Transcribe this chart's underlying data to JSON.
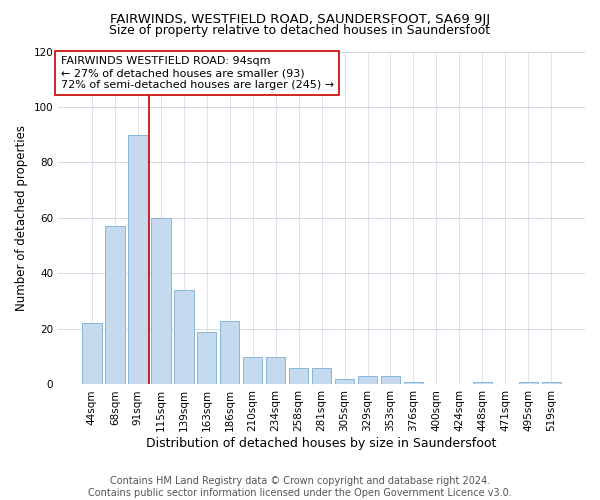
{
  "title": "FAIRWINDS, WESTFIELD ROAD, SAUNDERSFOOT, SA69 9JJ",
  "subtitle": "Size of property relative to detached houses in Saundersfoot",
  "xlabel": "Distribution of detached houses by size in Saundersfoot",
  "ylabel": "Number of detached properties",
  "categories": [
    "44sqm",
    "68sqm",
    "91sqm",
    "115sqm",
    "139sqm",
    "163sqm",
    "186sqm",
    "210sqm",
    "234sqm",
    "258sqm",
    "281sqm",
    "305sqm",
    "329sqm",
    "353sqm",
    "376sqm",
    "400sqm",
    "424sqm",
    "448sqm",
    "471sqm",
    "495sqm",
    "519sqm"
  ],
  "values": [
    22,
    57,
    90,
    60,
    34,
    19,
    23,
    10,
    10,
    6,
    6,
    2,
    3,
    3,
    1,
    0,
    0,
    1,
    0,
    1,
    1
  ],
  "bar_color": "#c5d9ef",
  "bar_edge_color": "#7aadd4",
  "annotation_line_color": "#cc0000",
  "annotation_box_edge_color": "#cc0000",
  "annotation_box_text_line1": "FAIRWINDS WESTFIELD ROAD: 94sqm",
  "annotation_box_text_line2": "← 27% of detached houses are smaller (93)",
  "annotation_box_text_line3": "72% of semi-detached houses are larger (245) →",
  "ylim": [
    0,
    120
  ],
  "yticks": [
    0,
    20,
    40,
    60,
    80,
    100,
    120
  ],
  "grid_color": "#d0d8e4",
  "background_color": "#ffffff",
  "footer_line1": "Contains HM Land Registry data © Crown copyright and database right 2024.",
  "footer_line2": "Contains public sector information licensed under the Open Government Licence v3.0.",
  "title_fontsize": 9.5,
  "subtitle_fontsize": 9,
  "xlabel_fontsize": 9,
  "ylabel_fontsize": 8.5,
  "tick_fontsize": 7.5,
  "annotation_fontsize": 8,
  "footer_fontsize": 7
}
